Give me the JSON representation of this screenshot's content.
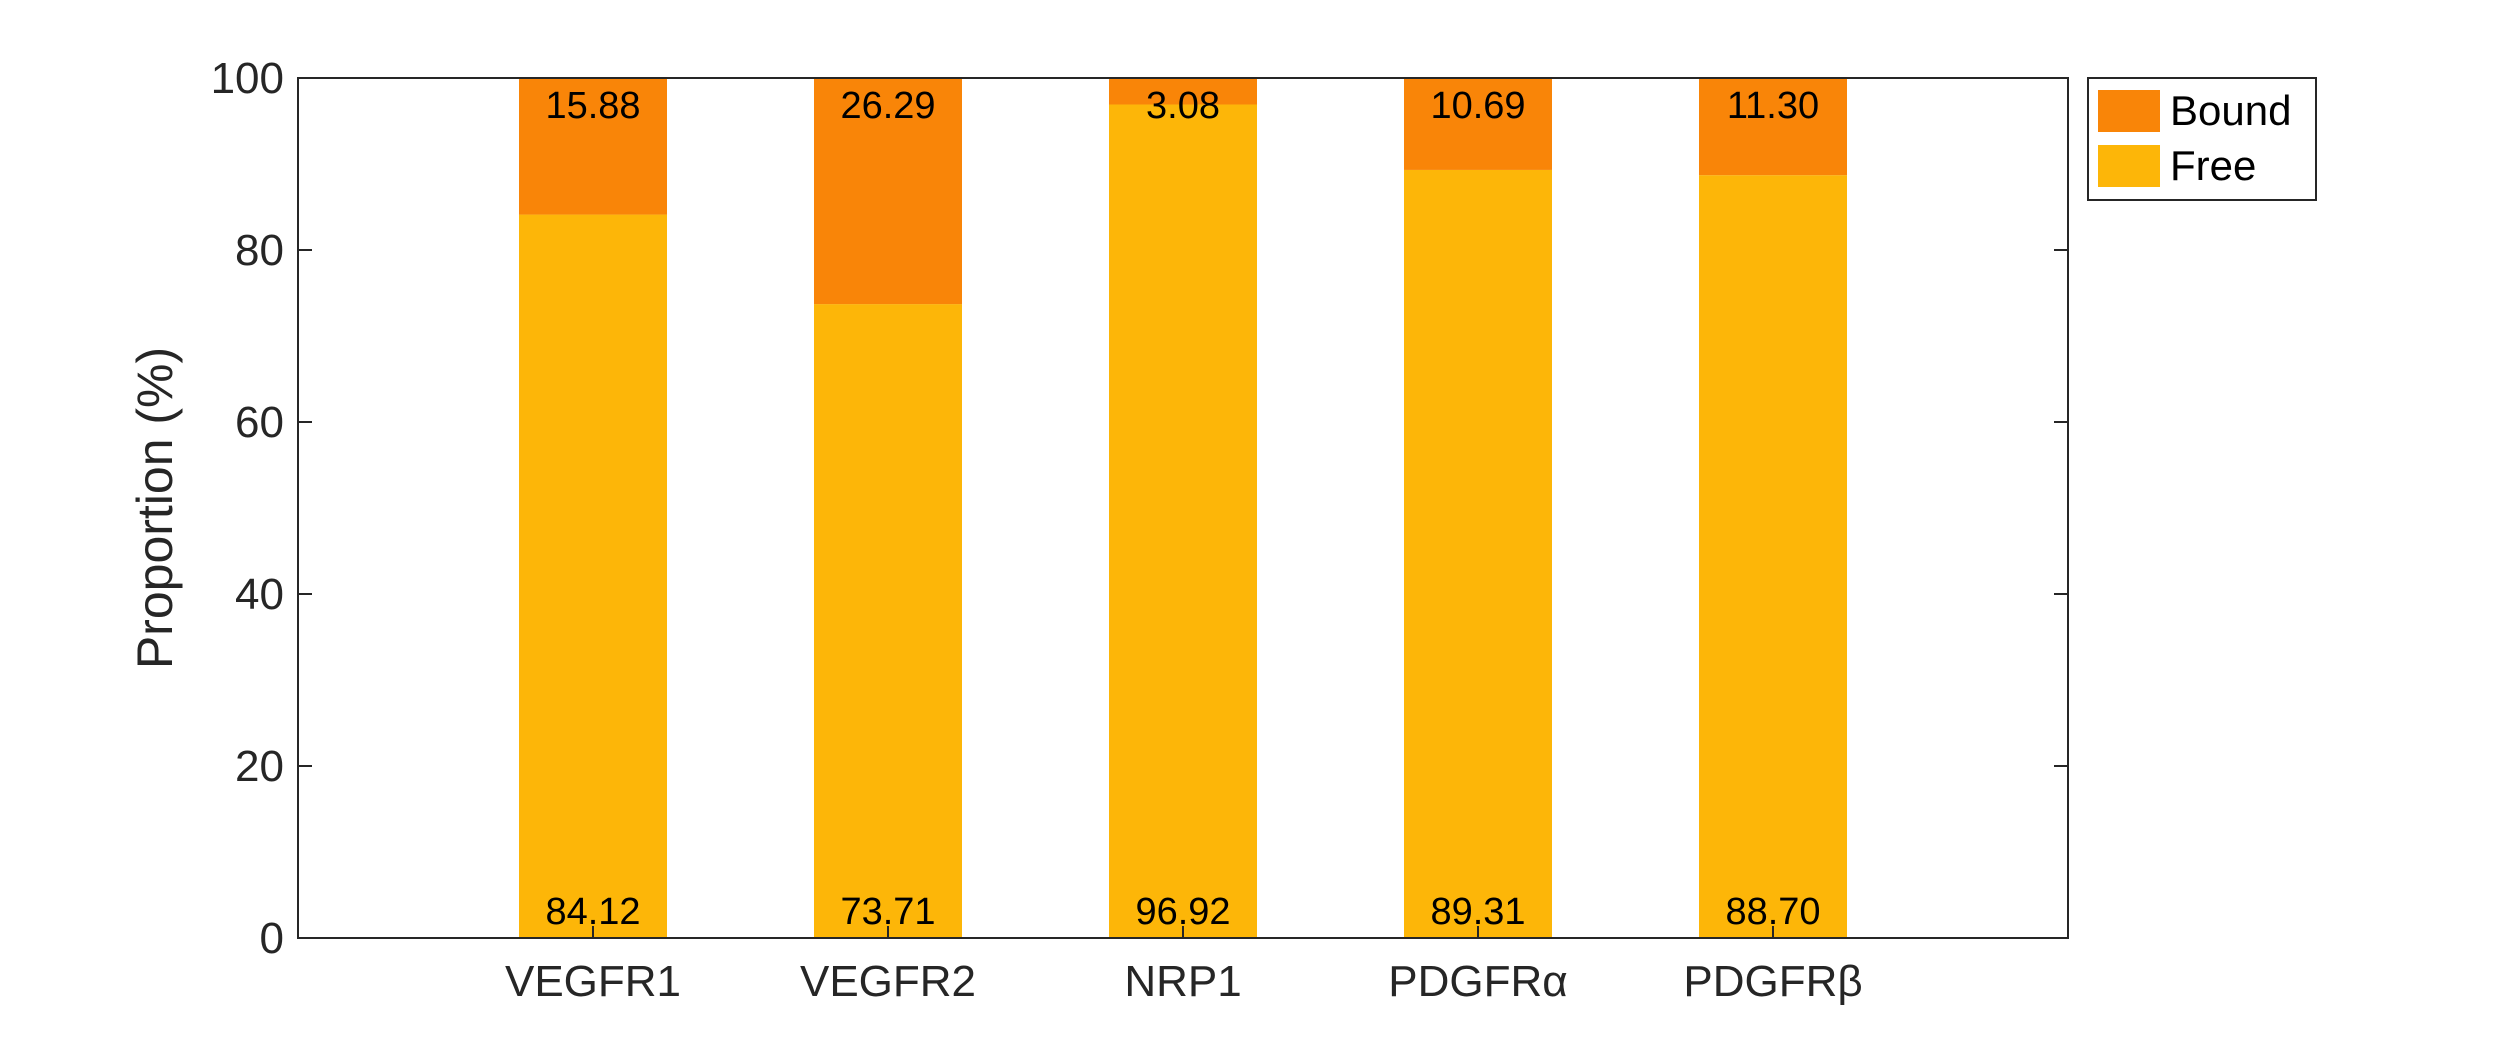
{
  "chart_data": {
    "type": "bar",
    "stacked": true,
    "categories": [
      "VEGFR1",
      "VEGFR2",
      "NRP1",
      "PDGFRα",
      "PDGFRβ"
    ],
    "series": [
      {
        "name": "Free",
        "values": [
          84.12,
          73.71,
          96.92,
          89.31,
          88.7
        ],
        "color": "#FDB608"
      },
      {
        "name": "Bound",
        "values": [
          15.88,
          26.29,
          3.08,
          10.69,
          11.3
        ],
        "color": "#F98508"
      }
    ],
    "data_labels": {
      "Free": [
        "84.12",
        "73.71",
        "96.92",
        "89.31",
        "88.70"
      ],
      "Bound": [
        "15.88",
        "26.29",
        "3.08",
        "10.69",
        "11.30"
      ]
    },
    "title": "",
    "xlabel": "",
    "ylabel": "Proportion (%)",
    "ylim": [
      0,
      100
    ],
    "yticks": [
      0,
      20,
      40,
      60,
      80,
      100
    ],
    "grid": false,
    "legend": {
      "position": "outside-top-right",
      "entries": [
        "Bound",
        "Free"
      ]
    }
  }
}
